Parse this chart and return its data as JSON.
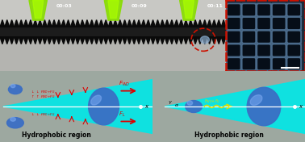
{
  "fig_width": 3.78,
  "fig_height": 1.76,
  "dpi": 100,
  "gray_bg": "#9DA8A0",
  "cyan_color": "#00E8E8",
  "blue_droplet": "#3B6EC4",
  "blue_highlight": "#7BA8F0",
  "timestamps": [
    "00:03",
    "00:09",
    "00:11"
  ],
  "label_left": "Hydrophobic region",
  "label_right": "Hydrophobic region",
  "angle_label": "α",
  "photo_bg_top": "#c8c8c4",
  "photo_mid": "#888880",
  "photo_dark": "#1a1a1a",
  "photo_surface": "#2a2a2a",
  "sem_bg": "#2a3a50",
  "sem_grid": "#5a7a9a"
}
